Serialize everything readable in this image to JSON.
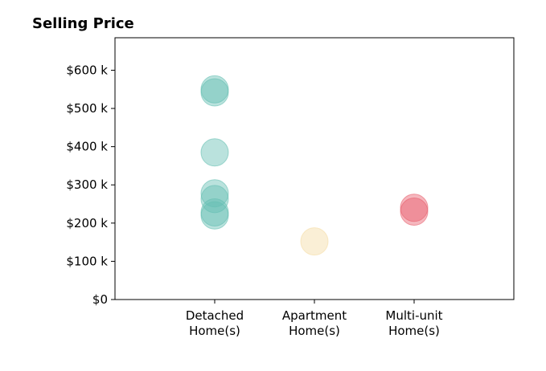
{
  "chart_data": {
    "type": "scatter",
    "title": "Selling Price",
    "xlabel": "",
    "ylabel": "",
    "categories": [
      [
        "Detached",
        "Home(s)"
      ],
      [
        "Apartment",
        "Home(s)"
      ],
      [
        "Multi-unit",
        "Home(s)"
      ]
    ],
    "xlim": [
      -1,
      3
    ],
    "ylim": [
      0,
      685000
    ],
    "yticks": [
      0,
      100000,
      200000,
      300000,
      400000,
      500000,
      600000
    ],
    "ytick_labels": [
      "$0",
      "$100 k",
      "$200 k",
      "$300 k",
      "$400 k",
      "$500 k",
      "$600 k"
    ],
    "grid": false,
    "series": [
      {
        "category_index": 0,
        "color": "#66bfb3",
        "values": [
          550000,
          542000,
          385000,
          278000,
          263000,
          228000,
          220000
        ]
      },
      {
        "category_index": 1,
        "color": "#f5dca3",
        "values": [
          152000
        ]
      },
      {
        "category_index": 2,
        "color": "#e8606e",
        "values": [
          240000,
          230000
        ]
      }
    ]
  }
}
